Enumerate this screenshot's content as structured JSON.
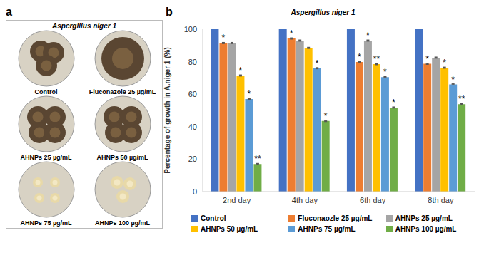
{
  "panel_a": {
    "label": "a",
    "title": "Aspergillus niger 1",
    "images": [
      "Control",
      "Fluconazole 25 µg/mL",
      "AHNPs 25 µg/mL",
      "AHNPs 50 µg/mL",
      "AHNPs 75 µg/mL",
      "AHNPs 100 µg/mL"
    ]
  },
  "chart_data": {
    "type": "bar",
    "panel_label": "b",
    "title": "Aspergillus niger 1",
    "y_label": "Percentage of growth in A.niger 1 (%)",
    "categories": [
      "2nd day",
      "4th day",
      "6th day",
      "8th day"
    ],
    "ylim": [
      0,
      100
    ],
    "yticks": [
      0,
      20,
      40,
      60,
      80,
      100
    ],
    "grid": false,
    "legend": "bottom",
    "series": [
      {
        "name": "Control",
        "color": "#4472c4",
        "values": [
          100,
          100,
          100,
          100
        ],
        "errors": [
          0,
          0,
          0,
          0
        ],
        "significance": [
          null,
          null,
          null,
          null
        ]
      },
      {
        "name": "Fluconaozle 25 µg/mL",
        "color": "#ed7d31",
        "values": [
          91.5,
          94.3,
          79.8,
          78.7
        ],
        "errors": [
          0.3,
          0.3,
          0.3,
          0.3
        ],
        "significance": [
          "*",
          "*",
          "*",
          "*"
        ]
      },
      {
        "name": "AHNPs 25 µg/mL",
        "color": "#a5a5a5",
        "values": [
          91.5,
          93,
          93,
          82.5
        ],
        "errors": [
          0.3,
          0.3,
          0.3,
          0.3
        ],
        "significance": [
          null,
          null,
          "*",
          null
        ]
      },
      {
        "name": "AHNPs 50 µg/mL",
        "color": "#ffc000",
        "values": [
          71.5,
          88.5,
          78.5,
          76.3
        ],
        "errors": [
          0.3,
          0.3,
          0.3,
          0.3
        ],
        "significance": [
          "*",
          null,
          "**",
          "*"
        ]
      },
      {
        "name": "AHNPs 75 µg/mL",
        "color": "#5b9bd5",
        "values": [
          57,
          76,
          70.5,
          66
        ],
        "errors": [
          0.3,
          0.3,
          0.3,
          0.3
        ],
        "significance": [
          "*",
          "*",
          "*",
          "*"
        ]
      },
      {
        "name": "AHNPs 100 µg/mL",
        "color": "#70ad47",
        "values": [
          17,
          43.5,
          51.8,
          53.8
        ],
        "errors": [
          0.3,
          0.3,
          0.3,
          0.3
        ],
        "significance": [
          "**",
          "*",
          "*",
          "**"
        ]
      }
    ]
  }
}
